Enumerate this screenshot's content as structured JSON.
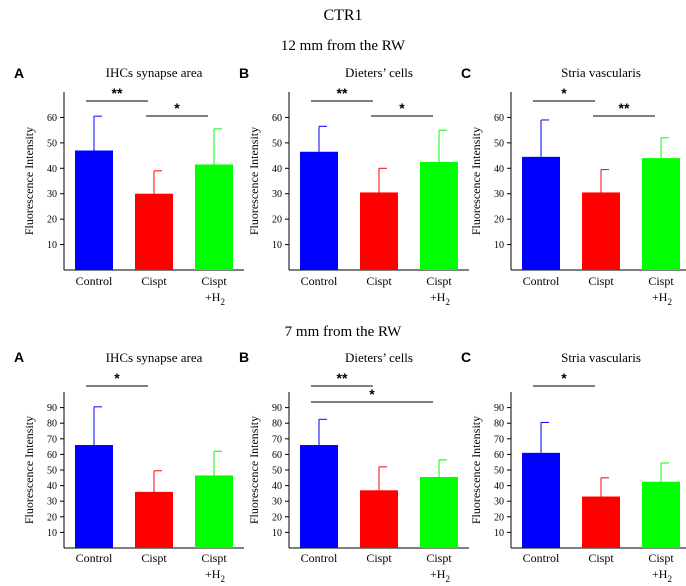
{
  "figure_title": "CTR1",
  "sections": [
    {
      "title": "12 mm from the RW"
    },
    {
      "title": "7 mm from the RW"
    }
  ],
  "colors": {
    "control": "#0000ff",
    "cispt": "#ff0000",
    "cispt_h2": "#00ff00"
  },
  "chart_data": [
    {
      "type": "bar",
      "section": "12 mm from the RW",
      "panel": "A",
      "title": "IHCs synapse area",
      "ylabel": "Fluorescence Intensity",
      "ylim": [
        0,
        70
      ],
      "yticks": [
        10,
        20,
        30,
        40,
        50,
        60
      ],
      "categories": [
        {
          "label": "Control"
        },
        {
          "label": "Cispt"
        },
        {
          "label": "Cispt",
          "sub_base": "+H",
          "sub_index": "2"
        }
      ],
      "values": [
        47,
        30,
        41.5
      ],
      "errors": [
        13.5,
        9,
        14
      ],
      "significance": [
        {
          "from": 0,
          "to": 1,
          "label": "**"
        },
        {
          "from": 1,
          "to": 2,
          "label": "*"
        }
      ]
    },
    {
      "type": "bar",
      "section": "12 mm from the RW",
      "panel": "B",
      "title": "Dieters’ cells",
      "ylabel": "Fluorescence Intensity",
      "ylim": [
        0,
        70
      ],
      "yticks": [
        10,
        20,
        30,
        40,
        50,
        60
      ],
      "categories": [
        {
          "label": "Control"
        },
        {
          "label": "Cispt"
        },
        {
          "label": "Cispt",
          "sub_base": "+H",
          "sub_index": "2"
        }
      ],
      "values": [
        46.5,
        30.5,
        42.5
      ],
      "errors": [
        10,
        9.5,
        12.5
      ],
      "significance": [
        {
          "from": 0,
          "to": 1,
          "label": "**"
        },
        {
          "from": 1,
          "to": 2,
          "label": "*"
        }
      ]
    },
    {
      "type": "bar",
      "section": "12 mm from the RW",
      "panel": "C",
      "title": "Stria vascularis",
      "ylabel": "Fluorescence Intensity",
      "ylim": [
        0,
        70
      ],
      "yticks": [
        10,
        20,
        30,
        40,
        50,
        60
      ],
      "categories": [
        {
          "label": "Control"
        },
        {
          "label": "Cispt"
        },
        {
          "label": "Cispt",
          "sub_base": "+H",
          "sub_index": "2"
        }
      ],
      "values": [
        44.5,
        30.5,
        44
      ],
      "errors": [
        14.5,
        9,
        8
      ],
      "significance": [
        {
          "from": 0,
          "to": 1,
          "label": "*"
        },
        {
          "from": 1,
          "to": 2,
          "label": "**"
        }
      ]
    },
    {
      "type": "bar",
      "section": "7 mm from the RW",
      "panel": "A",
      "title": "IHCs synapse area",
      "ylabel": "Fluorescence Intensity",
      "ylim": [
        0,
        100
      ],
      "yticks": [
        10,
        20,
        30,
        40,
        50,
        60,
        70,
        80,
        90
      ],
      "categories": [
        {
          "label": "Control"
        },
        {
          "label": "Cispt"
        },
        {
          "label": "Cispt",
          "sub_base": "+H",
          "sub_index": "2"
        }
      ],
      "values": [
        66,
        36,
        46.5
      ],
      "errors": [
        24.5,
        13.5,
        15.5
      ],
      "significance": [
        {
          "from": 0,
          "to": 1,
          "label": "*"
        }
      ]
    },
    {
      "type": "bar",
      "section": "7 mm from the RW",
      "panel": "B",
      "title": "Dieters’ cells",
      "ylabel": "Fluorescence Intensity",
      "ylim": [
        0,
        100
      ],
      "yticks": [
        10,
        20,
        30,
        40,
        50,
        60,
        70,
        80,
        90
      ],
      "categories": [
        {
          "label": "Control"
        },
        {
          "label": "Cispt"
        },
        {
          "label": "Cispt",
          "sub_base": "+H",
          "sub_index": "2"
        }
      ],
      "values": [
        66,
        37,
        45.5
      ],
      "errors": [
        16.5,
        15,
        11
      ],
      "significance": [
        {
          "from": 0,
          "to": 1,
          "label": "**"
        },
        {
          "from": 0,
          "to": 2,
          "label": "*"
        }
      ]
    },
    {
      "type": "bar",
      "section": "7 mm from the RW",
      "panel": "C",
      "title": "Stria vascularis",
      "ylabel": "Fluorescence Intensity",
      "ylim": [
        0,
        100
      ],
      "yticks": [
        10,
        20,
        30,
        40,
        50,
        60,
        70,
        80,
        90
      ],
      "categories": [
        {
          "label": "Control"
        },
        {
          "label": "Cispt"
        },
        {
          "label": "Cispt",
          "sub_base": "+H",
          "sub_index": "2"
        }
      ],
      "values": [
        61,
        33,
        42.5
      ],
      "errors": [
        19.5,
        12,
        12
      ],
      "significance": [
        {
          "from": 0,
          "to": 1,
          "label": "*"
        }
      ]
    }
  ]
}
